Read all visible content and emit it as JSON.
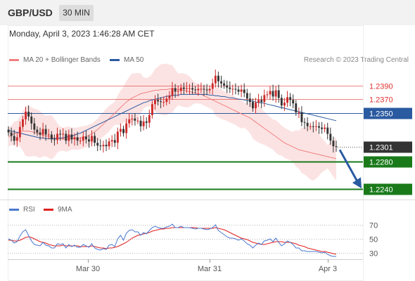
{
  "header": {
    "symbol": "GBP/USD",
    "timeframe": "30 MIN",
    "timestamp": "Monday, April 3, 2023 1:46:28 AM CET"
  },
  "legend": {
    "bollinger": {
      "label": "MA 20 + Bollinger Bands",
      "color": "#f08080"
    },
    "ma50": {
      "label": "MA 50",
      "color": "#2a5aa0"
    },
    "credit": "Research © 2023 Trading Central"
  },
  "rsi_legend": {
    "rsi": {
      "label": "RSI",
      "color": "#4a78d0"
    },
    "ma9": {
      "label": "9MA",
      "color": "#e02020"
    }
  },
  "colors": {
    "resistance": "#e03030",
    "pivot": "#2a5aa0",
    "support": "#1a7a1a",
    "current": "#333333",
    "arrow": "#2a5aa0",
    "candle_up": "#cc2a2a",
    "candle_down": "#333333"
  },
  "chart_data": {
    "type": "candlestick",
    "price_range": [
      1.2225,
      1.2415
    ],
    "x_labels": [
      "Mar 30",
      "Mar 31",
      "Apr 3"
    ],
    "levels": [
      {
        "label": "1.2390",
        "value": 1.239,
        "kind": "resistance"
      },
      {
        "label": "1.2370",
        "value": 1.237,
        "kind": "resistance"
      },
      {
        "label": "1.2350",
        "value": 1.235,
        "kind": "pivot"
      },
      {
        "label": "1.2301",
        "value": 1.2301,
        "kind": "current"
      },
      {
        "label": "1.2280",
        "value": 1.228,
        "kind": "support"
      },
      {
        "label": "1.2240",
        "value": 1.224,
        "kind": "support"
      }
    ],
    "forecast": {
      "from": 1.2301,
      "to": 1.224,
      "direction": "down"
    },
    "closes": [
      1.2322,
      1.2317,
      1.231,
      1.2315,
      1.233,
      1.2341,
      1.2352,
      1.2345,
      1.2335,
      1.2326,
      1.2322,
      1.2319,
      1.2327,
      1.2319,
      1.2319,
      1.2312,
      1.2311,
      1.232,
      1.2319,
      1.232,
      1.231,
      1.2319,
      1.2312,
      1.2315,
      1.231,
      1.231,
      1.2316,
      1.2312,
      1.2309,
      1.2317,
      1.2307,
      1.2303,
      1.2302,
      1.2304,
      1.2302,
      1.2309,
      1.2311,
      1.2307,
      1.2323,
      1.2327,
      1.2321,
      1.2335,
      1.2341,
      1.2342,
      1.2339,
      1.2339,
      1.2331,
      1.2338,
      1.2336,
      1.2347,
      1.2363,
      1.2369,
      1.2367,
      1.2366,
      1.2366,
      1.2371,
      1.2375,
      1.2386,
      1.2381,
      1.2382,
      1.2387,
      1.2385,
      1.2386,
      1.2386,
      1.2384,
      1.2383,
      1.2385,
      1.2385,
      1.2384,
      1.2383,
      1.2385,
      1.2393,
      1.2404,
      1.2396,
      1.2393,
      1.239,
      1.2387,
      1.2385,
      1.2385,
      1.2384,
      1.2381,
      1.2384,
      1.2379,
      1.2371,
      1.2366,
      1.2357,
      1.2365,
      1.2369,
      1.2366,
      1.2376,
      1.2377,
      1.2382,
      1.2374,
      1.2383,
      1.2372,
      1.2361,
      1.2365,
      1.2373,
      1.2369,
      1.2364,
      1.2351,
      1.2351,
      1.2337,
      1.2336,
      1.2331,
      1.2331,
      1.233,
      1.2331,
      1.2329,
      1.2327,
      1.2329,
      1.232,
      1.231,
      1.2302,
      1.2301
    ],
    "ma20": [
      1.2315,
      1.2318,
      1.232,
      1.2322,
      1.2323,
      1.2324,
      1.2324,
      1.2324,
      1.2323,
      1.2322,
      1.2321,
      1.2319,
      1.2318,
      1.2317,
      1.2316,
      1.2315,
      1.2314,
      1.2314,
      1.2313,
      1.2312,
      1.2312,
      1.2313,
      1.2313,
      1.2313,
      1.2313,
      1.2314,
      1.2315,
      1.2316,
      1.2318,
      1.232,
      1.2323,
      1.2326,
      1.233,
      1.2334,
      1.2338,
      1.2342,
      1.2346,
      1.235,
      1.2354,
      1.2358,
      1.2362,
      1.2366,
      1.2369,
      1.2372,
      1.2374,
      1.2376,
      1.2378,
      1.2379,
      1.238,
      1.2381,
      1.2382,
      1.2383,
      1.2383,
      1.2384,
      1.2384,
      1.2384,
      1.2385,
      1.2385,
      1.2385,
      1.2384,
      1.2384,
      1.2383,
      1.2382,
      1.2381,
      1.238,
      1.2379,
      1.2378,
      1.2377,
      1.2375,
      1.2373,
      1.2371,
      1.2369,
      1.2367,
      1.2365,
      1.2363,
      1.2361,
      1.2359,
      1.2357,
      1.2355,
      1.2353,
      1.2351,
      1.2349,
      1.2347,
      1.2345,
      1.2343,
      1.234,
      1.2337,
      1.2334,
      1.2331,
      1.2328,
      1.2325,
      1.2322,
      1.2319,
      1.2316,
      1.2313,
      1.231,
      1.2307,
      1.2305,
      1.2303,
      1.2301,
      1.2299,
      1.2297,
      1.2296,
      1.2295,
      1.2294,
      1.2293,
      1.2292,
      1.2291,
      1.229,
      1.2289,
      1.2288,
      1.2287,
      1.2286,
      1.2285,
      1.2284
    ],
    "ma50": [
      1.2325,
      1.2324,
      1.2323,
      1.2322,
      1.2321,
      1.232,
      1.2319,
      1.2318,
      1.2317,
      1.2316,
      1.2315,
      1.2314,
      1.2314,
      1.2313,
      1.2313,
      1.2313,
      1.2313,
      1.2313,
      1.2314,
      1.2314,
      1.2315,
      1.2316,
      1.2317,
      1.2318,
      1.232,
      1.2321,
      1.2323,
      1.2325,
      1.2327,
      1.2329,
      1.2331,
      1.2333,
      1.2335,
      1.2337,
      1.2339,
      1.2341,
      1.2343,
      1.2345,
      1.2347,
      1.2349,
      1.2351,
      1.2353,
      1.2355,
      1.2357,
      1.2359,
      1.2361,
      1.2363,
      1.2365,
      1.2366,
      1.2368,
      1.2369,
      1.237,
      1.2371,
      1.2372,
      1.2373,
      1.2374,
      1.2375,
      1.2375,
      1.2376,
      1.2376,
      1.2377,
      1.2377,
      1.2377,
      1.2377,
      1.2377,
      1.2377,
      1.2377,
      1.2377,
      1.2377,
      1.2377,
      1.2376,
      1.2376,
      1.2375,
      1.2375,
      1.2374,
      1.2374,
      1.2373,
      1.2372,
      1.2372,
      1.2371,
      1.237,
      1.237,
      1.2369,
      1.2368,
      1.2368,
      1.2367,
      1.2366,
      1.2365,
      1.2365,
      1.2364,
      1.2363,
      1.2362,
      1.2361,
      1.236,
      1.2359,
      1.2358,
      1.2357,
      1.2356,
      1.2355,
      1.2354,
      1.2353,
      1.2352,
      1.2351,
      1.235,
      1.2349,
      1.2348,
      1.2347,
      1.2346,
      1.2345,
      1.2344,
      1.2343,
      1.2342,
      1.2341,
      1.234,
      1.2339
    ],
    "rsi": {
      "range": [
        20,
        85
      ],
      "levels": [
        70,
        50,
        30
      ],
      "labels": [
        "70",
        "50",
        "30"
      ],
      "values": [
        50,
        48,
        44,
        46,
        54,
        60,
        63,
        55,
        47,
        42,
        41,
        40,
        45,
        41,
        40,
        37,
        37,
        43,
        42,
        43,
        37,
        42,
        39,
        41,
        38,
        38,
        42,
        40,
        38,
        43,
        37,
        35,
        34,
        36,
        35,
        41,
        42,
        39,
        50,
        55,
        48,
        58,
        62,
        63,
        60,
        60,
        55,
        59,
        57,
        62,
        66,
        68,
        66,
        65,
        65,
        67,
        68,
        71,
        66,
        66,
        68,
        66,
        66,
        66,
        65,
        64,
        65,
        65,
        64,
        63,
        64,
        66,
        70,
        62,
        59,
        56,
        53,
        51,
        51,
        50,
        48,
        50,
        47,
        43,
        41,
        37,
        41,
        44,
        42,
        47,
        48,
        50,
        46,
        51,
        45,
        40,
        43,
        47,
        45,
        42,
        37,
        37,
        33,
        33,
        32,
        32,
        32,
        32,
        31,
        30,
        31,
        28,
        26,
        25,
        25
      ],
      "ma9": [
        48,
        48,
        47,
        47,
        48,
        50,
        52,
        53,
        52,
        50,
        48,
        46,
        45,
        44,
        42,
        41,
        40,
        40,
        40,
        41,
        40,
        40,
        40,
        40,
        40,
        39,
        39,
        39,
        39,
        40,
        39,
        38,
        37,
        37,
        36,
        37,
        37,
        38,
        39,
        41,
        43,
        45,
        48,
        51,
        53,
        55,
        56,
        57,
        58,
        59,
        61,
        62,
        63,
        64,
        64,
        65,
        65,
        66,
        66,
        66,
        66,
        66,
        66,
        66,
        66,
        66,
        65,
        65,
        65,
        65,
        65,
        65,
        66,
        65,
        64,
        63,
        61,
        59,
        57,
        55,
        53,
        51,
        50,
        49,
        47,
        45,
        44,
        43,
        42,
        42,
        43,
        44,
        45,
        46,
        46,
        46,
        45,
        45,
        45,
        44,
        43,
        41,
        40,
        39,
        37,
        36,
        35,
        34,
        33,
        32,
        32,
        31,
        30,
        29,
        28
      ]
    }
  }
}
